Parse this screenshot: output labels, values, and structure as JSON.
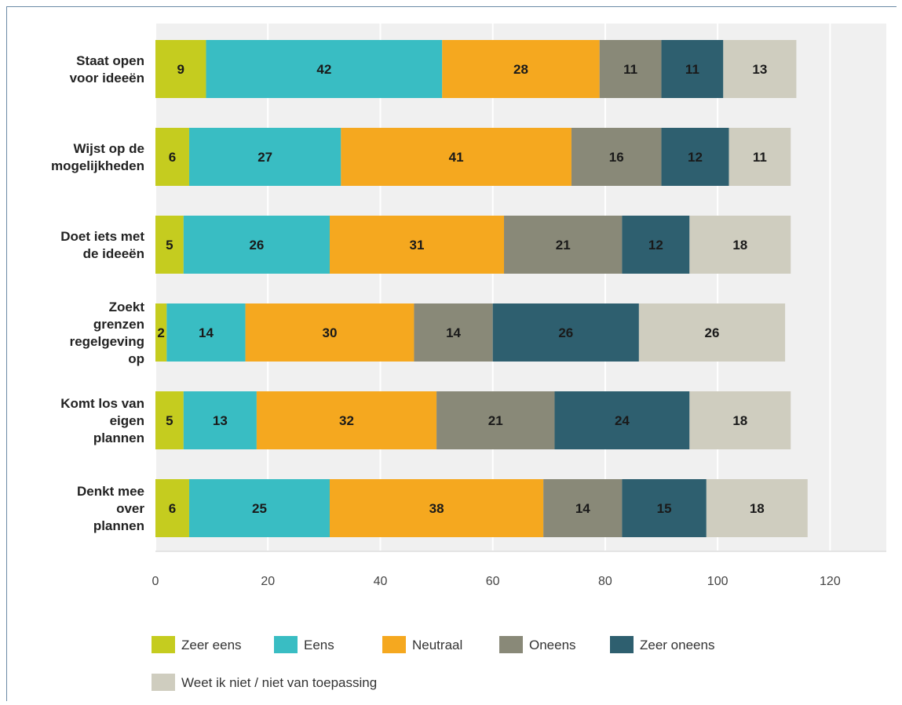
{
  "chart_data": {
    "type": "bar",
    "orientation": "horizontal",
    "stacked": true,
    "categories": [
      [
        "Staat open",
        "voor ideeën"
      ],
      [
        "Wijst op de",
        "mogelijkheden"
      ],
      [
        "Doet iets met",
        "de ideeën"
      ],
      [
        "Zoekt",
        "grenzen",
        "regelgeving",
        "op"
      ],
      [
        "Komt los van",
        "eigen",
        "plannen"
      ],
      [
        "Denkt mee",
        "over",
        "plannen"
      ]
    ],
    "series": [
      {
        "name": "Zeer eens",
        "color": "#c5cc1f",
        "values": [
          9,
          6,
          5,
          2,
          5,
          6
        ]
      },
      {
        "name": "Eens",
        "color": "#39bdc3",
        "values": [
          42,
          27,
          26,
          14,
          13,
          25
        ]
      },
      {
        "name": "Neutraal",
        "color": "#f5a81f",
        "values": [
          28,
          41,
          31,
          30,
          32,
          38
        ]
      },
      {
        "name": "Oneens",
        "color": "#898978",
        "values": [
          11,
          16,
          21,
          14,
          21,
          14
        ]
      },
      {
        "name": "Zeer oneens",
        "color": "#2e5f6f",
        "values": [
          11,
          12,
          12,
          26,
          24,
          15
        ]
      },
      {
        "name": "Weet ik niet / niet van toepassing",
        "color": "#cfcdbf",
        "values": [
          13,
          11,
          18,
          26,
          18,
          18
        ]
      }
    ],
    "xlim": [
      0,
      130
    ],
    "xticks": [
      0,
      20,
      40,
      60,
      80,
      100,
      120
    ],
    "grid": true,
    "legend": "bottom"
  }
}
